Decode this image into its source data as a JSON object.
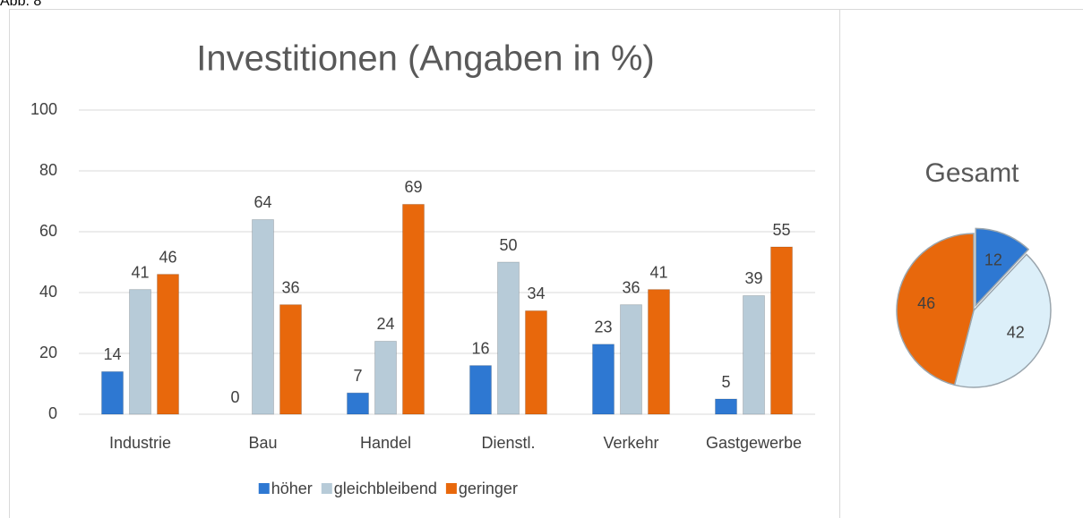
{
  "caption": "Abb. 8",
  "chart_data": [
    {
      "type": "bar",
      "title": "Investitionen (Angaben in %)",
      "categories": [
        "Industrie",
        "Bau",
        "Handel",
        "Dienstl.",
        "Verkehr",
        "Gastgewerbe"
      ],
      "series": [
        {
          "name": "höher",
          "color": "#2e78d2",
          "values": [
            14,
            0,
            7,
            16,
            23,
            5
          ]
        },
        {
          "name": "gleichbleibend",
          "color": "#b7cbd8",
          "values": [
            41,
            64,
            24,
            50,
            36,
            39
          ]
        },
        {
          "name": "geringer",
          "color": "#e8680c",
          "values": [
            46,
            36,
            69,
            34,
            41,
            55
          ]
        }
      ],
      "ylim": [
        0,
        100
      ],
      "yticks": [
        0,
        20,
        40,
        60,
        80,
        100
      ],
      "grid": true,
      "legend": "bottom"
    },
    {
      "type": "pie",
      "title": "Gesamt",
      "values": [
        12,
        42,
        46
      ],
      "colors": [
        "#2e78d2",
        "#dceff9",
        "#e8680c"
      ]
    }
  ]
}
